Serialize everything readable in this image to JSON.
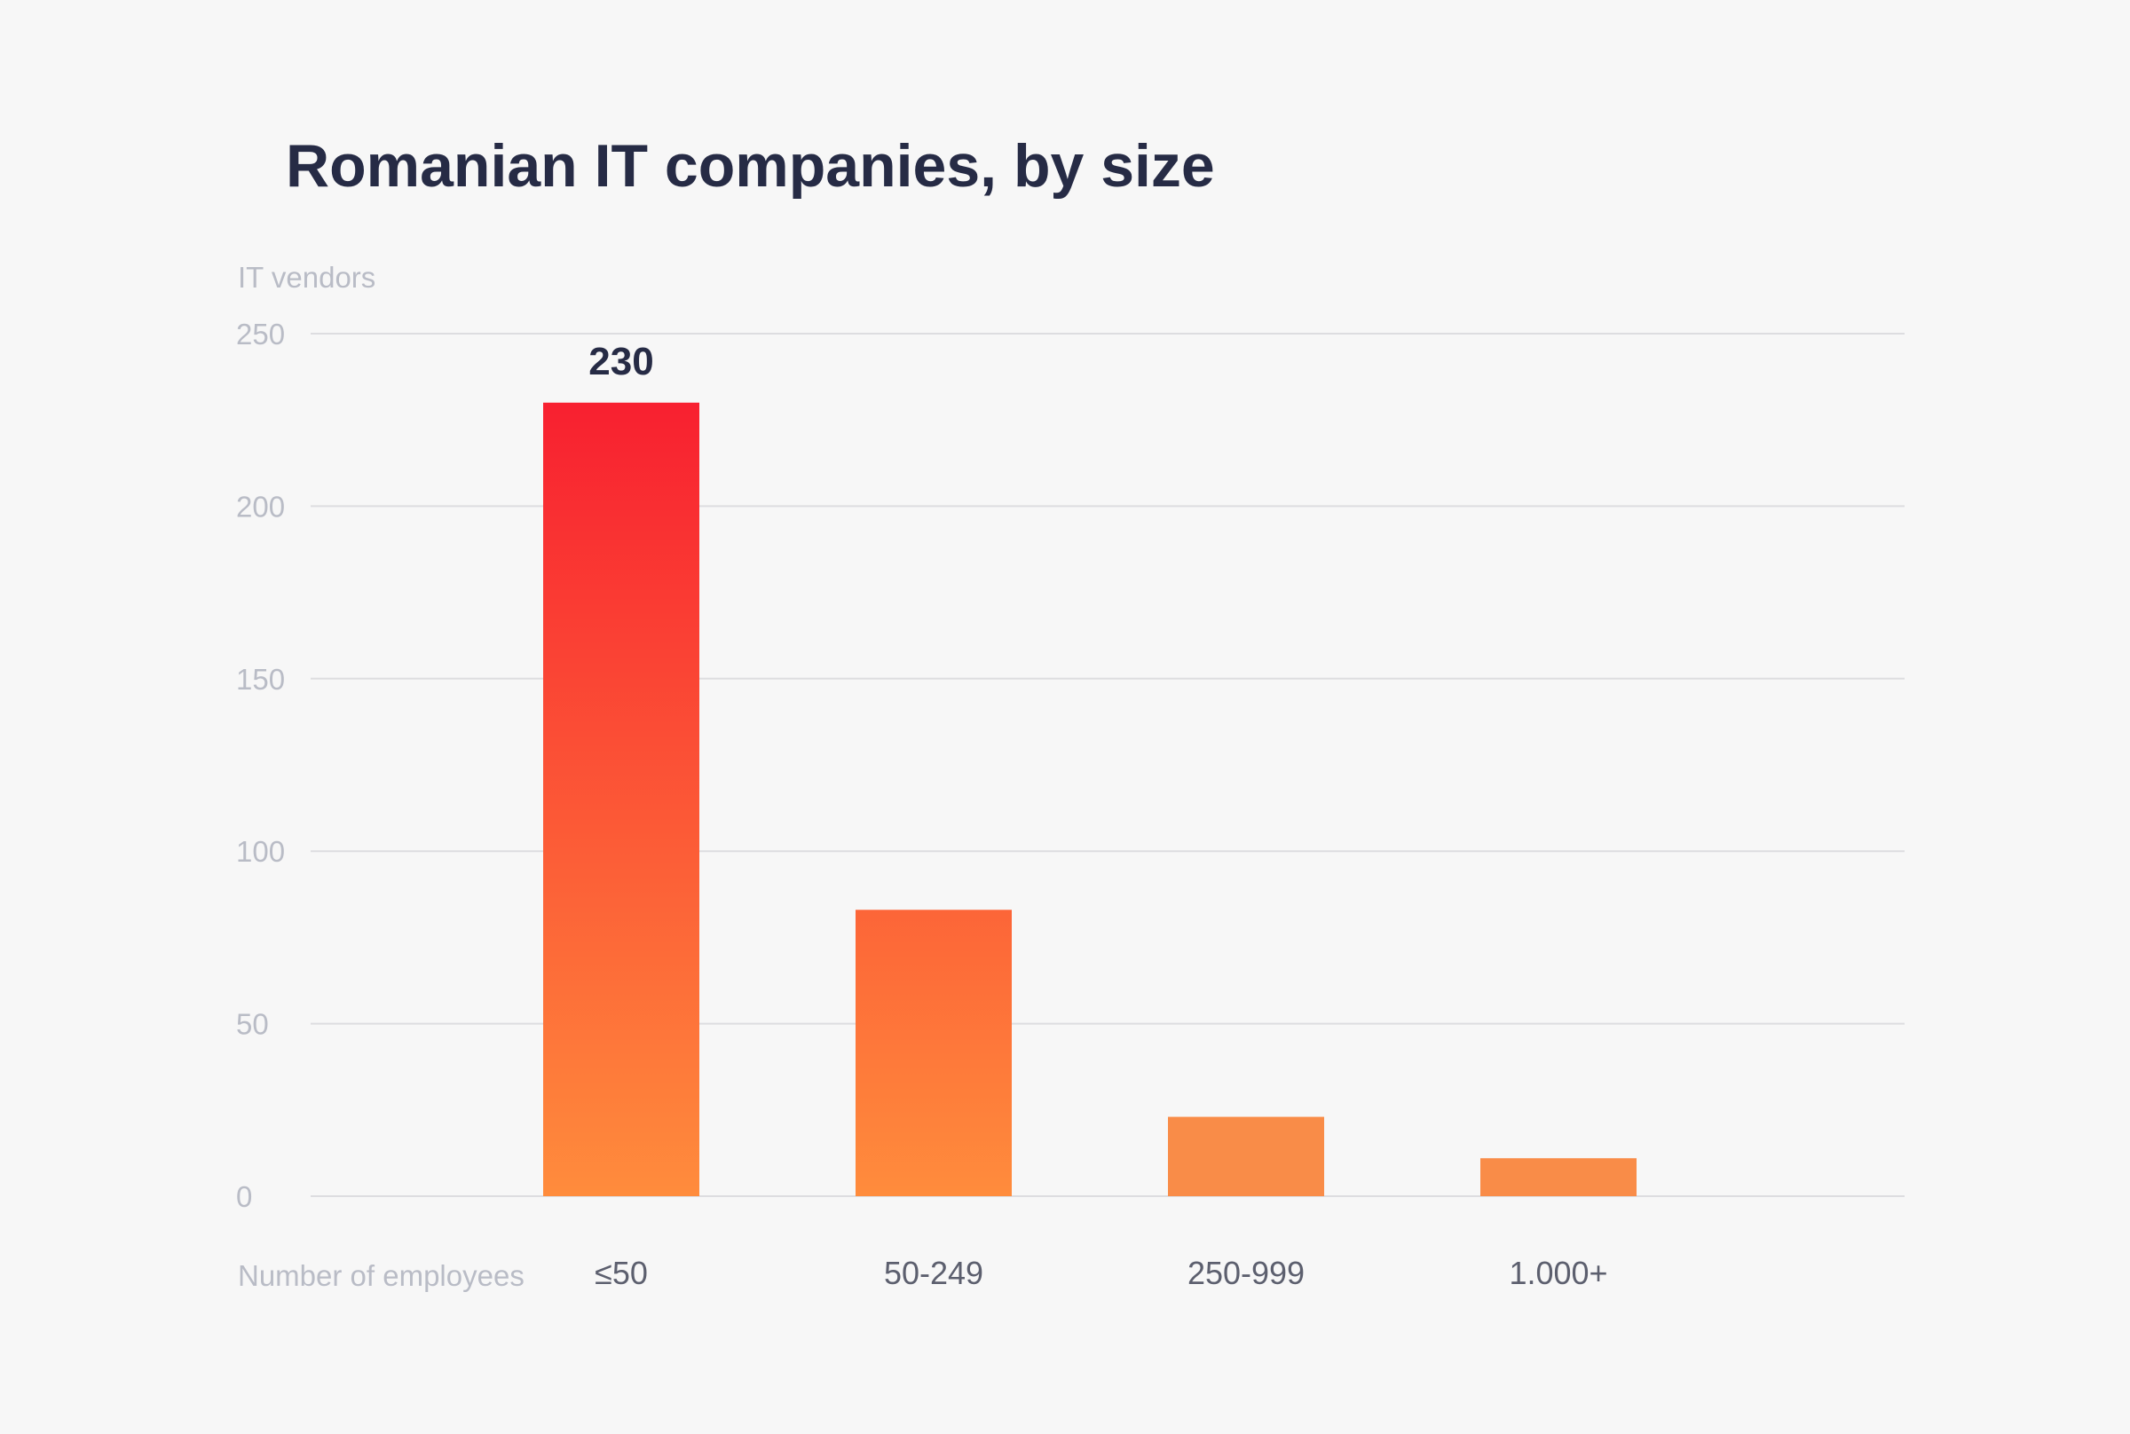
{
  "chart_data": {
    "type": "bar",
    "title": "Romanian IT companies, by size",
    "ylabel": "IT vendors",
    "xlabel": "Number of employees",
    "categories": [
      "≤50",
      "50-249",
      "250-999",
      "1.000+"
    ],
    "values": [
      230,
      83,
      23,
      11
    ],
    "data_labels": [
      "230",
      "",
      "",
      ""
    ],
    "ylim": [
      0,
      250
    ],
    "yticks": [
      0,
      50,
      100,
      150,
      200,
      250
    ],
    "grid": true,
    "colors": {
      "gradient_top": "#f82030",
      "gradient_bottom": "#ff8c3c",
      "short_bar": "#f98c48"
    }
  }
}
